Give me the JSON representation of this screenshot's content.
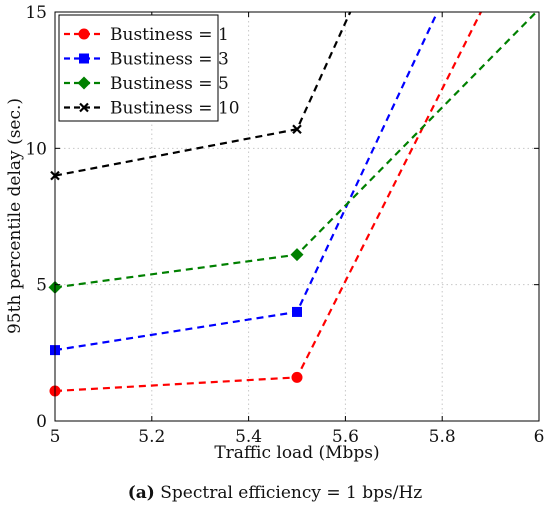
{
  "chart_data": {
    "type": "line",
    "xlabel": "Traffic load (Mbps)",
    "ylabel": "95th percentile delay (sec.)",
    "xlim": [
      5,
      6
    ],
    "ylim": [
      0,
      15
    ],
    "xticks": [
      "5",
      "5.2",
      "5.4",
      "5.6",
      "5.8",
      "6"
    ],
    "yticks": [
      "0",
      "5",
      "10",
      "15"
    ],
    "grid": true,
    "legend_position": "top-left",
    "series": [
      {
        "name": "Bustiness = 1",
        "color": "#ff0000",
        "marker": "circle",
        "x": [
          5,
          5.5,
          5.88
        ],
        "y": [
          1.1,
          1.6,
          15
        ]
      },
      {
        "name": "Bustiness = 3",
        "color": "#0000ff",
        "marker": "square",
        "x": [
          5,
          5.5,
          5.79
        ],
        "y": [
          2.6,
          4.0,
          15
        ]
      },
      {
        "name": "Bustiness = 5",
        "color": "#008000",
        "marker": "diamond",
        "x": [
          5,
          5.5,
          6.0
        ],
        "y": [
          4.9,
          6.1,
          15.1
        ]
      },
      {
        "name": "Bustiness = 10",
        "color": "#000000",
        "marker": "x",
        "x": [
          5,
          5.5,
          5.61
        ],
        "y": [
          9.0,
          10.7,
          15
        ]
      }
    ]
  },
  "caption": {
    "label": "(a)",
    "text": " Spectral efficiency = 1 bps/Hz"
  }
}
